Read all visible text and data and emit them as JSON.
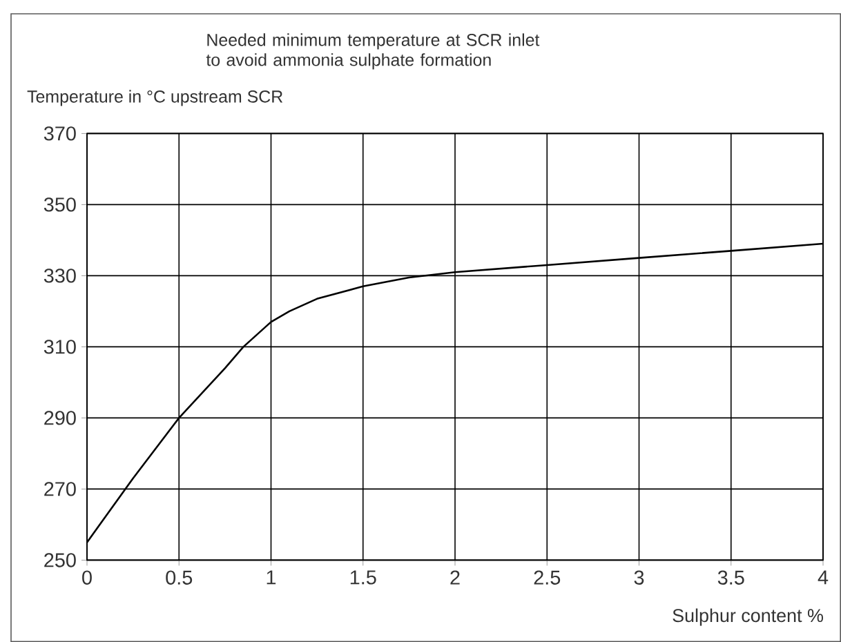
{
  "chart_data": {
    "type": "line",
    "title": "Needed minimum temperature at SCR inlet to avoid ammonia sulphate formation",
    "xlabel": "Sulphur content %",
    "ylabel": "Temperature in °C upstream SCR",
    "x": [
      0,
      0.25,
      0.5,
      0.75,
      0.85,
      1,
      1.1,
      1.25,
      1.5,
      1.75,
      2,
      2.5,
      3,
      3.5,
      4
    ],
    "series": [
      {
        "color": "#000000",
        "values": [
          255,
          273,
          290,
          304,
          310,
          317,
          320,
          323.5,
          327,
          329.5,
          331,
          333,
          335,
          337,
          339
        ]
      }
    ],
    "xlim": [
      0,
      4
    ],
    "ylim": [
      250,
      370
    ],
    "xticks": [
      0,
      0.5,
      1,
      1.5,
      2,
      2.5,
      3,
      3.5,
      4
    ],
    "yticks": [
      250,
      270,
      290,
      310,
      330,
      350,
      370
    ],
    "grid": true,
    "marker": "none",
    "line_style": "solid"
  }
}
